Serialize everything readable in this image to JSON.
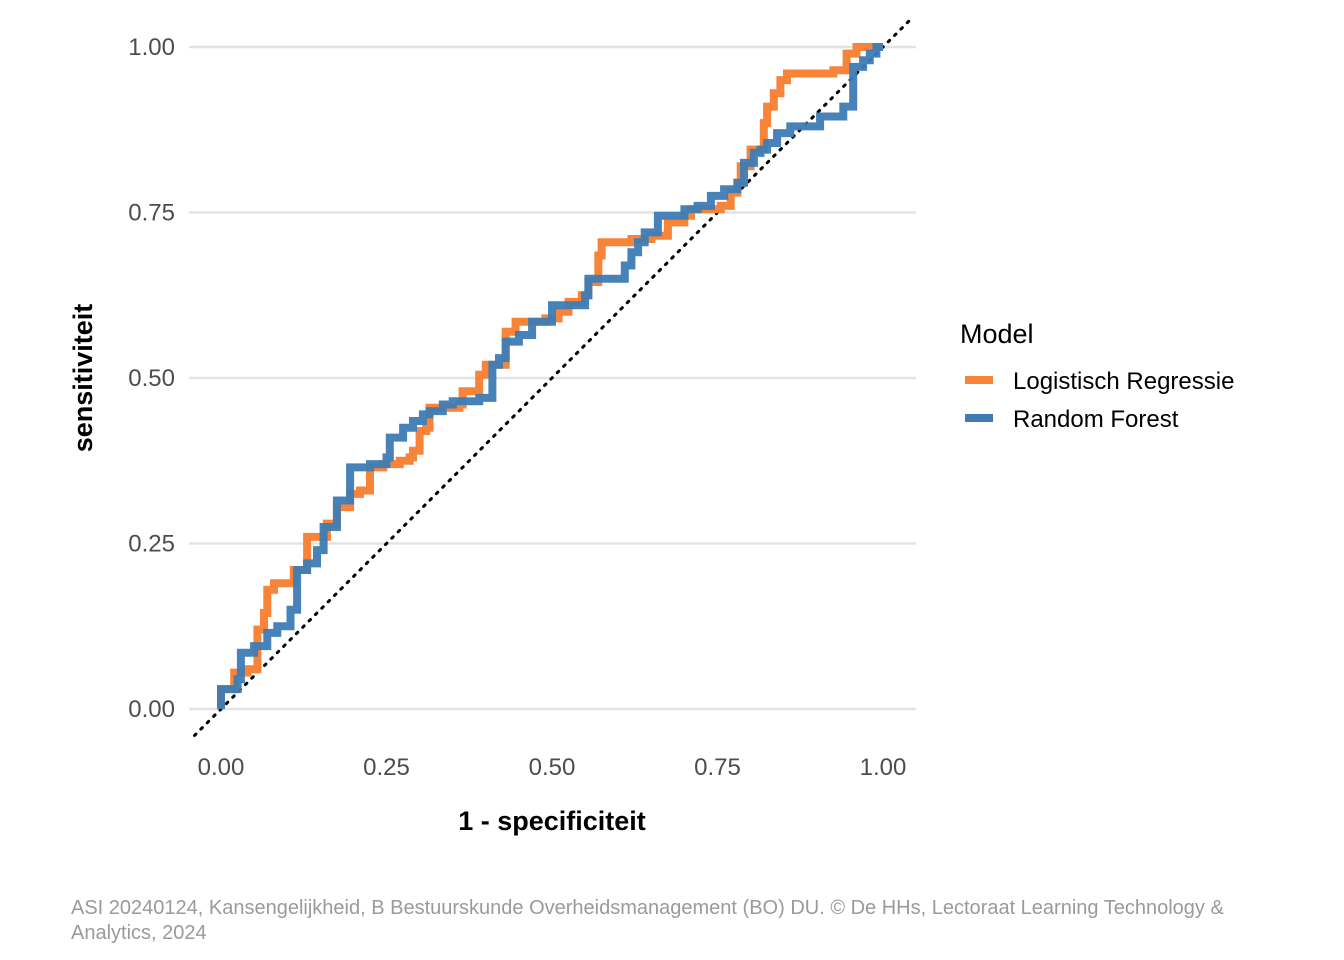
{
  "chart_data": {
    "type": "line",
    "title": "",
    "xlabel": "1 - specificiteit",
    "ylabel": "sensitiviteit",
    "xlim": [
      0,
      1
    ],
    "ylim": [
      0,
      1
    ],
    "x_ticks": [
      "0.00",
      "0.25",
      "0.50",
      "0.75",
      "1.00"
    ],
    "y_ticks": [
      "0.00",
      "0.25",
      "0.50",
      "0.75",
      "1.00"
    ],
    "grid": true,
    "reference_line": {
      "from": [
        0,
        0
      ],
      "to": [
        1,
        1
      ],
      "style": "dotted",
      "color": "#000000"
    },
    "legend": {
      "title": "Model",
      "position": "right"
    },
    "series": [
      {
        "name": "Logistisch Regressie",
        "color": "#F8843A",
        "steps": [
          [
            0,
            0
          ],
          [
            0,
            0.03
          ],
          [
            0.02,
            0.03
          ],
          [
            0.02,
            0.055
          ],
          [
            0.04,
            0.055
          ],
          [
            0.04,
            0.06
          ],
          [
            0.055,
            0.06
          ],
          [
            0.055,
            0.12
          ],
          [
            0.065,
            0.12
          ],
          [
            0.065,
            0.145
          ],
          [
            0.07,
            0.145
          ],
          [
            0.07,
            0.18
          ],
          [
            0.08,
            0.18
          ],
          [
            0.08,
            0.19
          ],
          [
            0.11,
            0.19
          ],
          [
            0.11,
            0.21
          ],
          [
            0.13,
            0.21
          ],
          [
            0.13,
            0.26
          ],
          [
            0.16,
            0.26
          ],
          [
            0.16,
            0.28
          ],
          [
            0.175,
            0.28
          ],
          [
            0.175,
            0.305
          ],
          [
            0.195,
            0.305
          ],
          [
            0.195,
            0.325
          ],
          [
            0.21,
            0.325
          ],
          [
            0.21,
            0.33
          ],
          [
            0.225,
            0.33
          ],
          [
            0.225,
            0.365
          ],
          [
            0.245,
            0.365
          ],
          [
            0.245,
            0.37
          ],
          [
            0.27,
            0.37
          ],
          [
            0.27,
            0.375
          ],
          [
            0.285,
            0.375
          ],
          [
            0.285,
            0.38
          ],
          [
            0.29,
            0.38
          ],
          [
            0.29,
            0.39
          ],
          [
            0.3,
            0.39
          ],
          [
            0.3,
            0.42
          ],
          [
            0.31,
            0.42
          ],
          [
            0.31,
            0.425
          ],
          [
            0.315,
            0.425
          ],
          [
            0.315,
            0.455
          ],
          [
            0.36,
            0.455
          ],
          [
            0.36,
            0.46
          ],
          [
            0.365,
            0.46
          ],
          [
            0.365,
            0.48
          ],
          [
            0.39,
            0.48
          ],
          [
            0.39,
            0.505
          ],
          [
            0.4,
            0.505
          ],
          [
            0.4,
            0.52
          ],
          [
            0.43,
            0.52
          ],
          [
            0.43,
            0.57
          ],
          [
            0.445,
            0.57
          ],
          [
            0.445,
            0.585
          ],
          [
            0.49,
            0.585
          ],
          [
            0.49,
            0.59
          ],
          [
            0.5,
            0.59
          ],
          [
            0.51,
            0.59
          ],
          [
            0.51,
            0.6
          ],
          [
            0.525,
            0.6
          ],
          [
            0.525,
            0.615
          ],
          [
            0.545,
            0.615
          ],
          [
            0.545,
            0.625
          ],
          [
            0.555,
            0.625
          ],
          [
            0.555,
            0.645
          ],
          [
            0.57,
            0.645
          ],
          [
            0.57,
            0.685
          ],
          [
            0.575,
            0.685
          ],
          [
            0.575,
            0.705
          ],
          [
            0.62,
            0.705
          ],
          [
            0.62,
            0.71
          ],
          [
            0.65,
            0.71
          ],
          [
            0.65,
            0.715
          ],
          [
            0.675,
            0.715
          ],
          [
            0.675,
            0.735
          ],
          [
            0.7,
            0.735
          ],
          [
            0.7,
            0.745
          ],
          [
            0.71,
            0.745
          ],
          [
            0.71,
            0.755
          ],
          [
            0.755,
            0.755
          ],
          [
            0.755,
            0.76
          ],
          [
            0.77,
            0.76
          ],
          [
            0.77,
            0.78
          ],
          [
            0.78,
            0.78
          ],
          [
            0.78,
            0.795
          ],
          [
            0.785,
            0.795
          ],
          [
            0.785,
            0.82
          ],
          [
            0.8,
            0.82
          ],
          [
            0.8,
            0.845
          ],
          [
            0.82,
            0.845
          ],
          [
            0.82,
            0.885
          ],
          [
            0.825,
            0.885
          ],
          [
            0.825,
            0.91
          ],
          [
            0.835,
            0.91
          ],
          [
            0.835,
            0.93
          ],
          [
            0.845,
            0.93
          ],
          [
            0.845,
            0.95
          ],
          [
            0.855,
            0.95
          ],
          [
            0.855,
            0.96
          ],
          [
            0.925,
            0.96
          ],
          [
            0.925,
            0.965
          ],
          [
            0.945,
            0.965
          ],
          [
            0.945,
            0.99
          ],
          [
            0.96,
            0.99
          ],
          [
            0.96,
            1
          ],
          [
            1,
            1
          ]
        ]
      },
      {
        "name": "Random Forest",
        "color": "#3D7CB4",
        "steps": [
          [
            0,
            0
          ],
          [
            0,
            0.03
          ],
          [
            0.025,
            0.03
          ],
          [
            0.025,
            0.045
          ],
          [
            0.03,
            0.045
          ],
          [
            0.03,
            0.085
          ],
          [
            0.05,
            0.085
          ],
          [
            0.05,
            0.095
          ],
          [
            0.07,
            0.095
          ],
          [
            0.07,
            0.115
          ],
          [
            0.085,
            0.115
          ],
          [
            0.085,
            0.125
          ],
          [
            0.105,
            0.125
          ],
          [
            0.105,
            0.15
          ],
          [
            0.115,
            0.15
          ],
          [
            0.115,
            0.21
          ],
          [
            0.13,
            0.21
          ],
          [
            0.13,
            0.22
          ],
          [
            0.145,
            0.22
          ],
          [
            0.145,
            0.24
          ],
          [
            0.155,
            0.24
          ],
          [
            0.155,
            0.275
          ],
          [
            0.175,
            0.275
          ],
          [
            0.175,
            0.315
          ],
          [
            0.195,
            0.315
          ],
          [
            0.195,
            0.365
          ],
          [
            0.225,
            0.365
          ],
          [
            0.225,
            0.37
          ],
          [
            0.25,
            0.37
          ],
          [
            0.25,
            0.38
          ],
          [
            0.255,
            0.38
          ],
          [
            0.255,
            0.41
          ],
          [
            0.275,
            0.41
          ],
          [
            0.275,
            0.425
          ],
          [
            0.29,
            0.425
          ],
          [
            0.29,
            0.435
          ],
          [
            0.305,
            0.435
          ],
          [
            0.305,
            0.445
          ],
          [
            0.315,
            0.445
          ],
          [
            0.315,
            0.45
          ],
          [
            0.335,
            0.45
          ],
          [
            0.335,
            0.46
          ],
          [
            0.35,
            0.46
          ],
          [
            0.35,
            0.465
          ],
          [
            0.39,
            0.465
          ],
          [
            0.39,
            0.47
          ],
          [
            0.41,
            0.47
          ],
          [
            0.41,
            0.52
          ],
          [
            0.42,
            0.52
          ],
          [
            0.42,
            0.53
          ],
          [
            0.43,
            0.53
          ],
          [
            0.43,
            0.555
          ],
          [
            0.45,
            0.555
          ],
          [
            0.45,
            0.565
          ],
          [
            0.47,
            0.565
          ],
          [
            0.47,
            0.585
          ],
          [
            0.5,
            0.585
          ],
          [
            0.5,
            0.61
          ],
          [
            0.55,
            0.61
          ],
          [
            0.55,
            0.625
          ],
          [
            0.555,
            0.625
          ],
          [
            0.555,
            0.65
          ],
          [
            0.61,
            0.65
          ],
          [
            0.61,
            0.67
          ],
          [
            0.62,
            0.67
          ],
          [
            0.62,
            0.69
          ],
          [
            0.63,
            0.69
          ],
          [
            0.63,
            0.705
          ],
          [
            0.64,
            0.705
          ],
          [
            0.64,
            0.72
          ],
          [
            0.66,
            0.72
          ],
          [
            0.66,
            0.745
          ],
          [
            0.7,
            0.745
          ],
          [
            0.7,
            0.755
          ],
          [
            0.72,
            0.755
          ],
          [
            0.72,
            0.76
          ],
          [
            0.74,
            0.76
          ],
          [
            0.74,
            0.775
          ],
          [
            0.76,
            0.775
          ],
          [
            0.76,
            0.785
          ],
          [
            0.78,
            0.785
          ],
          [
            0.78,
            0.795
          ],
          [
            0.79,
            0.795
          ],
          [
            0.79,
            0.825
          ],
          [
            0.805,
            0.825
          ],
          [
            0.805,
            0.84
          ],
          [
            0.815,
            0.84
          ],
          [
            0.815,
            0.845
          ],
          [
            0.825,
            0.845
          ],
          [
            0.825,
            0.855
          ],
          [
            0.84,
            0.855
          ],
          [
            0.84,
            0.87
          ],
          [
            0.86,
            0.87
          ],
          [
            0.86,
            0.88
          ],
          [
            0.905,
            0.88
          ],
          [
            0.905,
            0.895
          ],
          [
            0.94,
            0.895
          ],
          [
            0.94,
            0.91
          ],
          [
            0.955,
            0.91
          ],
          [
            0.955,
            0.97
          ],
          [
            0.97,
            0.97
          ],
          [
            0.97,
            0.98
          ],
          [
            0.98,
            0.98
          ],
          [
            0.98,
            0.99
          ],
          [
            0.99,
            0.99
          ],
          [
            0.99,
            1
          ],
          [
            1,
            1
          ]
        ]
      }
    ]
  },
  "caption": "ASI 20240124, Kansengelijkheid, B Bestuurskunde Overheidsmanagement (BO) DU. © De HHs, Lectoraat Learning Technology & Analytics, 2024"
}
